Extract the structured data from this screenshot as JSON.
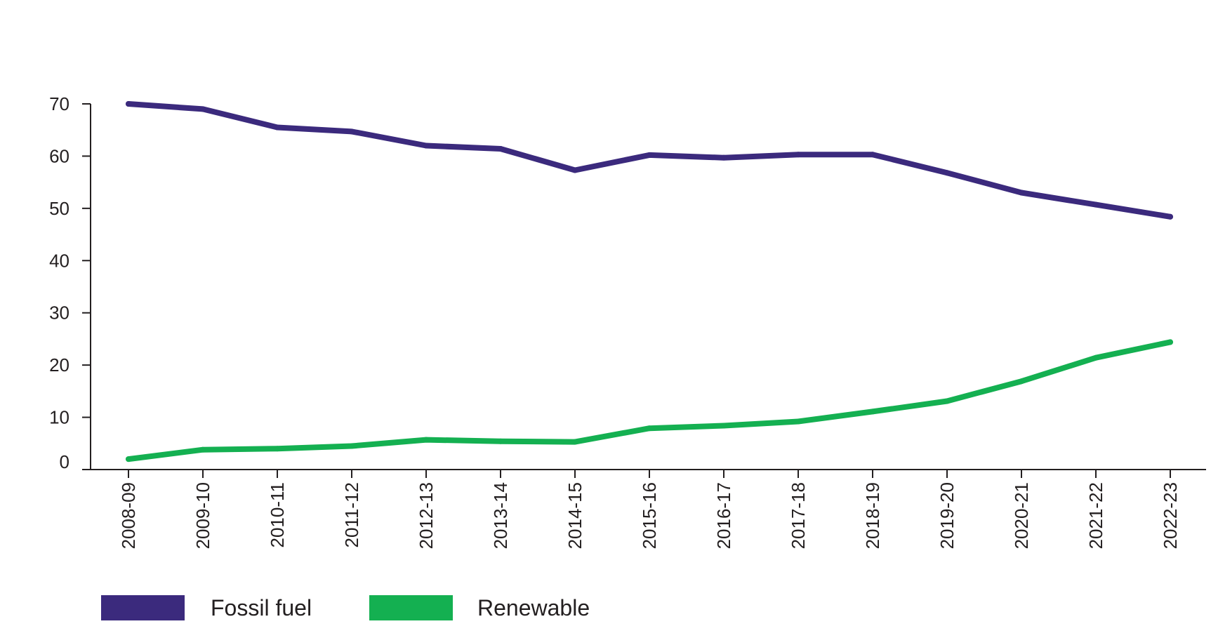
{
  "chart_data": {
    "type": "line",
    "categories": [
      "2008-09",
      "2009-10",
      "2010-11",
      "2011-12",
      "2012-13",
      "2013-14",
      "2014-15",
      "2015-16",
      "2016-17",
      "2017-18",
      "2018-19",
      "2019-20",
      "2020-21",
      "2021-22",
      "2022-23"
    ],
    "series": [
      {
        "name": "Fossil fuel",
        "color": "#3b2a7d",
        "values": [
          70.0,
          69.0,
          65.5,
          64.7,
          62.0,
          61.4,
          57.3,
          60.2,
          59.7,
          60.3,
          60.3,
          56.8,
          53.0,
          50.7,
          48.4
        ]
      },
      {
        "name": "Renewable",
        "color": "#14b051",
        "values": [
          2.0,
          3.8,
          4.0,
          4.5,
          5.7,
          5.4,
          5.3,
          7.9,
          8.4,
          9.2,
          11.1,
          13.1,
          16.9,
          21.4,
          24.4
        ]
      }
    ],
    "yticks": [
      "0",
      "10",
      "20",
      "30",
      "40",
      "50",
      "60",
      "70"
    ],
    "ylim": [
      0,
      70
    ],
    "grid": false,
    "legend_position": "bottom-left"
  }
}
